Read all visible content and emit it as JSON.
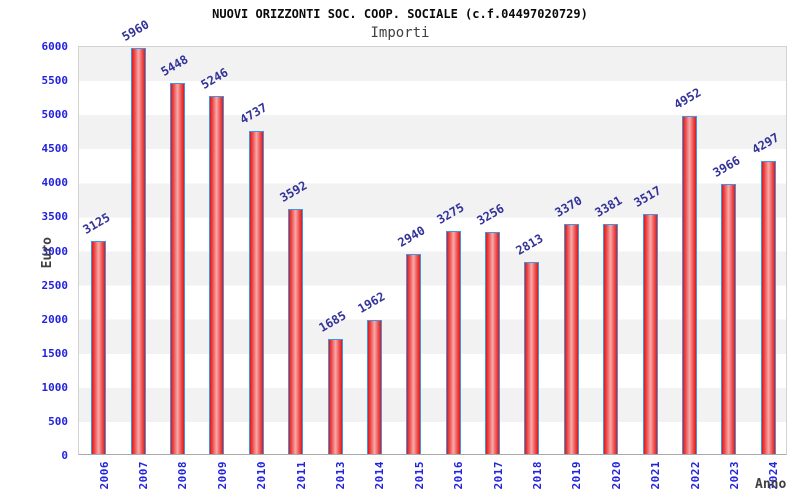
{
  "title": "NUOVI ORIZZONTI SOC. COOP. SOCIALE (c.f.04497020729)",
  "subtitle": "Importi",
  "chart_data": {
    "type": "bar",
    "title": "NUOVI ORIZZONTI SOC. COOP. SOCIALE (c.f.04497020729)",
    "subtitle": "Importi",
    "xlabel": "Anno",
    "ylabel": "Euro",
    "categories": [
      "2006",
      "2007",
      "2008",
      "2009",
      "2010",
      "2011",
      "2013",
      "2014",
      "2015",
      "2016",
      "2017",
      "2018",
      "2019",
      "2020",
      "2021",
      "2022",
      "2023",
      "2024"
    ],
    "values": [
      3125,
      5960,
      5448,
      5246,
      4737,
      3592,
      1685,
      1962,
      2940,
      3275,
      3256,
      2813,
      3370,
      3381,
      3517,
      4952,
      3966,
      4297
    ],
    "ylim": [
      0,
      6000
    ],
    "ytick_step": 500,
    "grid": "alternating horizontal bands every 500, no vertical gridlines",
    "legend": "none",
    "value_labels": "above bars, rotated -30deg"
  },
  "colors": {
    "bar_fill": "#e21717",
    "bar_highlight": "#f6abab",
    "bar_edge": "#3d97e4",
    "value_label": "#333399",
    "tick_label": "#2323dd",
    "band_gray": "#f2f2f2",
    "band_white": "#ffffff",
    "title": "#0a0a0a",
    "subtitle": "#404040",
    "axis_label": "#404040"
  }
}
